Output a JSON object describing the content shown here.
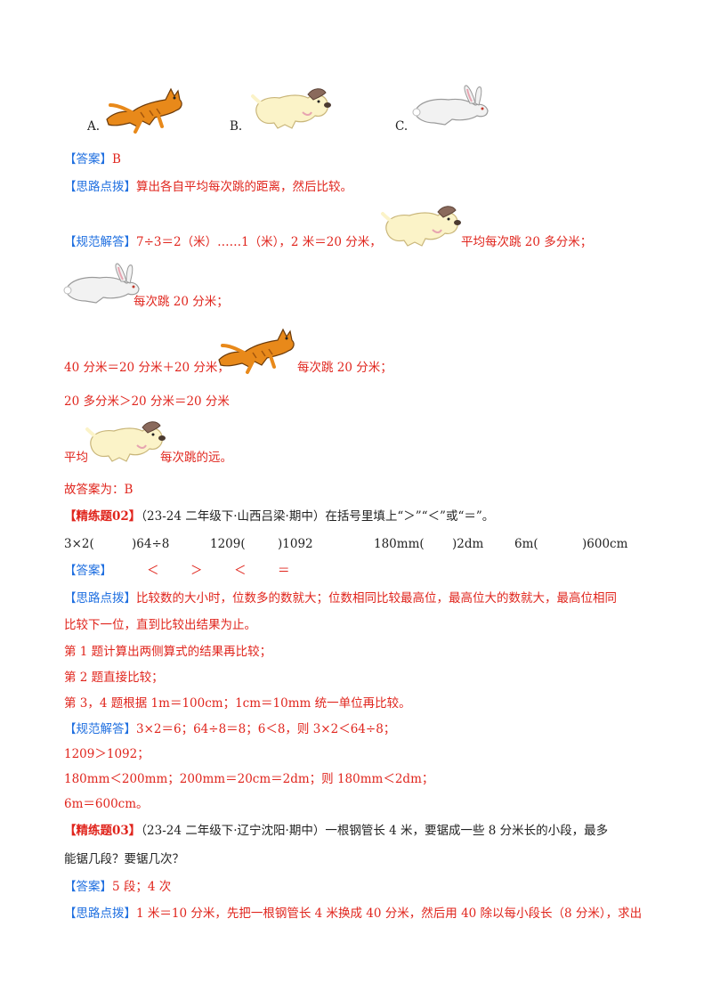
{
  "options": {
    "a": "A.",
    "b": "B.",
    "c": "C."
  },
  "answer1": {
    "tag": "【答案】",
    "value": "B"
  },
  "hint1": {
    "tag": "【思路点拨】",
    "text": "算出各自平均每次跳的距离，然后比较。"
  },
  "solution1": {
    "tag": "【规范解答】",
    "line1a": "7÷3＝2（米）……1（米），2 米＝20 分米，",
    "line1b": "平均每次跳 20 多分米；",
    "line2": "每次跳 20 分米；",
    "line3a": "40 分米＝20 分米＋20 分米，",
    "line3b": "每次跳 20 分米；",
    "line4": "20 多分米＞20 分米＝20 分米",
    "line5a": "平均",
    "line5b": "每次跳的远。"
  },
  "final1": "故答案为：B",
  "q2": {
    "tag": "【精练题02】",
    "text": "（23-24 二年级下·山西吕梁·期中）在括号里填上“＞”“＜”或“＝”。",
    "items": [
      "3×2(",
      ")64÷8",
      "1209(",
      ")1092",
      "180mm(",
      ")2dm",
      "6m(",
      ")600cm"
    ],
    "answer_tag": "【答案】",
    "answers": [
      "＜",
      "＞",
      "＜",
      "＝"
    ],
    "hint_tag": "【思路点拨】",
    "hint_line1": "比较数的大小时，位数多的数就大；位数相同比较最高位，最高位大的数就大，最高位相同",
    "hint_line2": "比较下一位，直到比较出结果为止。",
    "hint_line3": "第 1 题计算出两侧算式的结果再比较；",
    "hint_line4": "第 2 题直接比较；",
    "hint_line5": "第 3，4 题根据 1m＝100cm；1cm＝10mm 统一单位再比较。",
    "sol_tag": "【规范解答】",
    "sol_line1": "3×2＝6；64÷8＝8；6＜8，则 3×2＜64÷8；",
    "sol_line2": "1209＞1092；",
    "sol_line3": "180mm＜200mm；200mm＝20cm＝2dm；则 180mm＜2dm；",
    "sol_line4": "6m＝600cm。"
  },
  "q3": {
    "tag": "【精练题03】",
    "text_line1": "（23-24 二年级下·辽宁沈阳·期中）一根钢管长 4 米，要锯成一些 8 分米长的小段，最多",
    "text_line2": "能锯几段？要锯几次？",
    "answer_tag": "【答案】",
    "answer": "5 段；4 次",
    "hint_tag": "【思路点拨】",
    "hint_line1": "1 米＝10 分米，先把一根钢管长 4 米换成 40 分米，然后用 40 除以每小段长（8 分米），求出"
  },
  "icons": [
    "cat-icon",
    "dog-icon",
    "rabbit-icon"
  ],
  "colors": {
    "answer_red": "#e0251d",
    "tag_blue": "#1f6fe0",
    "cat_orange": "#e8891a",
    "dog_cream": "#fbf3c8",
    "rabbit_white": "#f2f2f2"
  }
}
